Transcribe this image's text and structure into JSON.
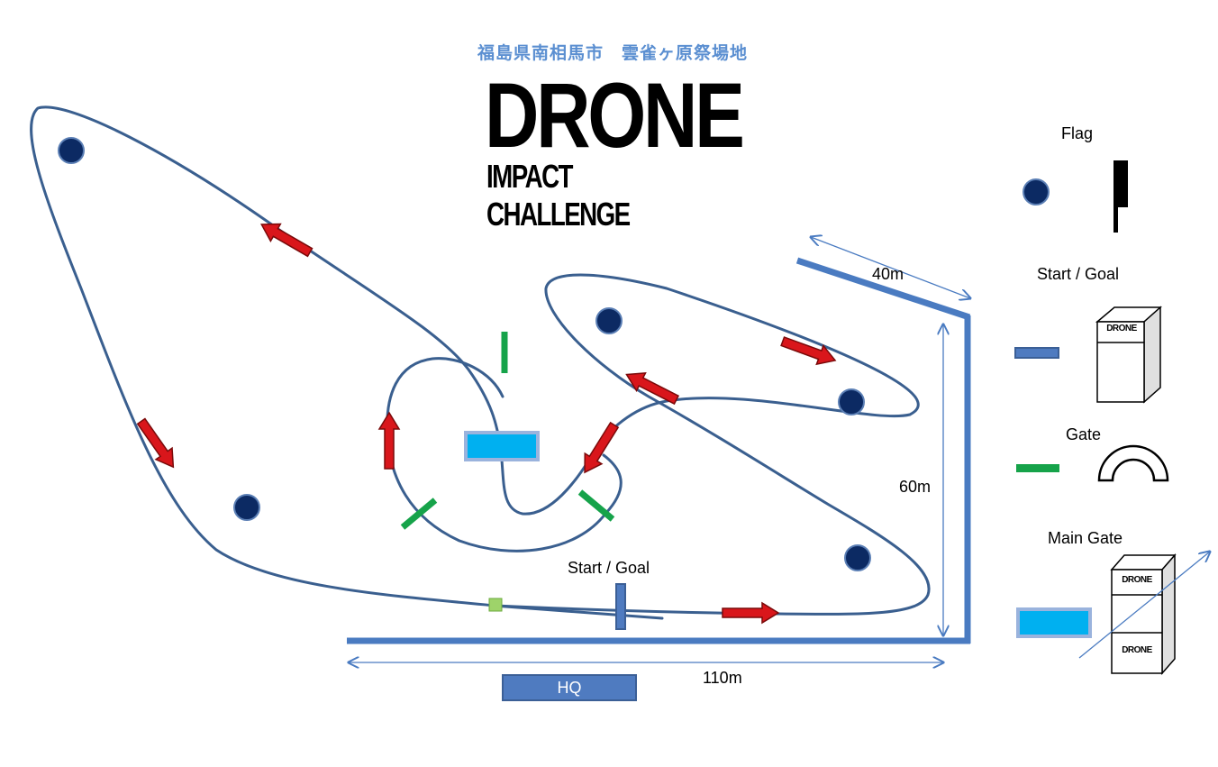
{
  "header": {
    "venue": "福島県南相馬市　雲雀ヶ原祭場地",
    "logo_line1": "DRONE",
    "logo_line2": "IMPACT CHALLENGE"
  },
  "course": {
    "start_goal_label": "Start / Goal",
    "hq_label": "HQ",
    "dimension_width": "40m",
    "dimension_depth": "60m",
    "dimension_length": "110m"
  },
  "legend": {
    "flag": "Flag",
    "start_goal": "Start / Goal",
    "gate": "Gate",
    "main_gate": "Main Gate",
    "box_logo": "DRONE"
  },
  "colors": {
    "route": "#3a5f8f",
    "arrow": "#d9161b",
    "flag": "#0c2a63",
    "gate": "#16a34a",
    "main_gate": "#00b0f0",
    "fence": "#4a7bc1",
    "dimension": "#4a7bc1"
  },
  "icons": [
    "flag-marker-icon",
    "flag-pole-icon",
    "gate-arch-icon",
    "start-goal-box-icon",
    "main-gate-box-icon"
  ]
}
